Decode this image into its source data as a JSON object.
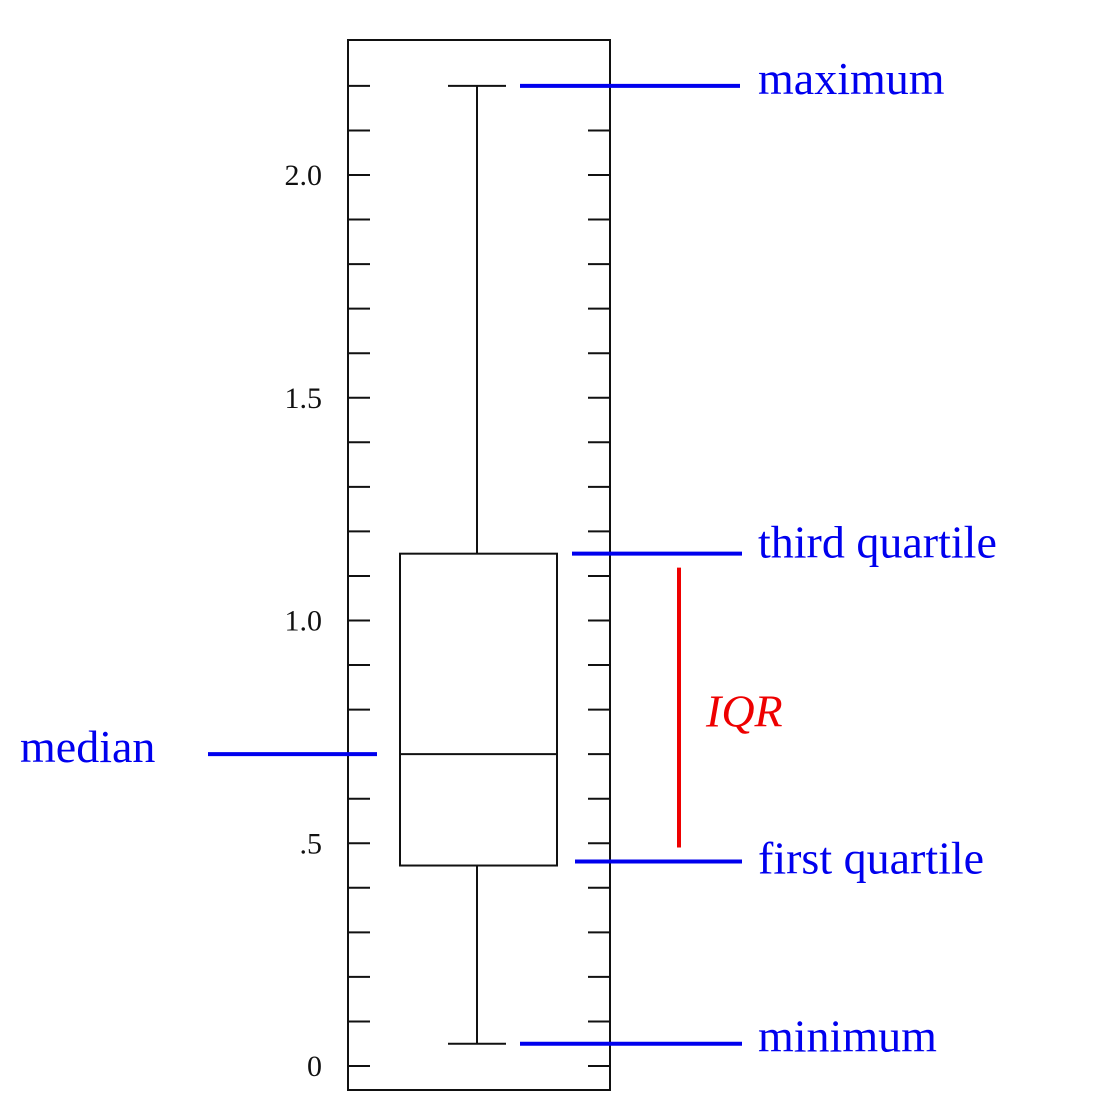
{
  "chart_data": {
    "type": "box",
    "ylim": [
      0,
      2.25
    ],
    "tick_labels": [
      {
        "value": 0,
        "label": "0"
      },
      {
        "value": 0.5,
        "label": ".5"
      },
      {
        "value": 1.0,
        "label": "1.0"
      },
      {
        "value": 1.5,
        "label": "1.5"
      },
      {
        "value": 2.0,
        "label": "2.0"
      }
    ],
    "minor_tick_step": 0.1,
    "box": {
      "minimum": 0.05,
      "first_quartile": 0.45,
      "median": 0.7,
      "third_quartile": 1.15,
      "maximum": 2.2
    },
    "annotations": {
      "maximum": "maximum",
      "third_quartile": "third quartile",
      "median": "median",
      "first_quartile": "first quartile",
      "minimum": "minimum",
      "iqr": "IQR"
    },
    "colors": {
      "annotation": "#0000ee",
      "iqr": "#ee0000",
      "plot": "#111111"
    }
  }
}
